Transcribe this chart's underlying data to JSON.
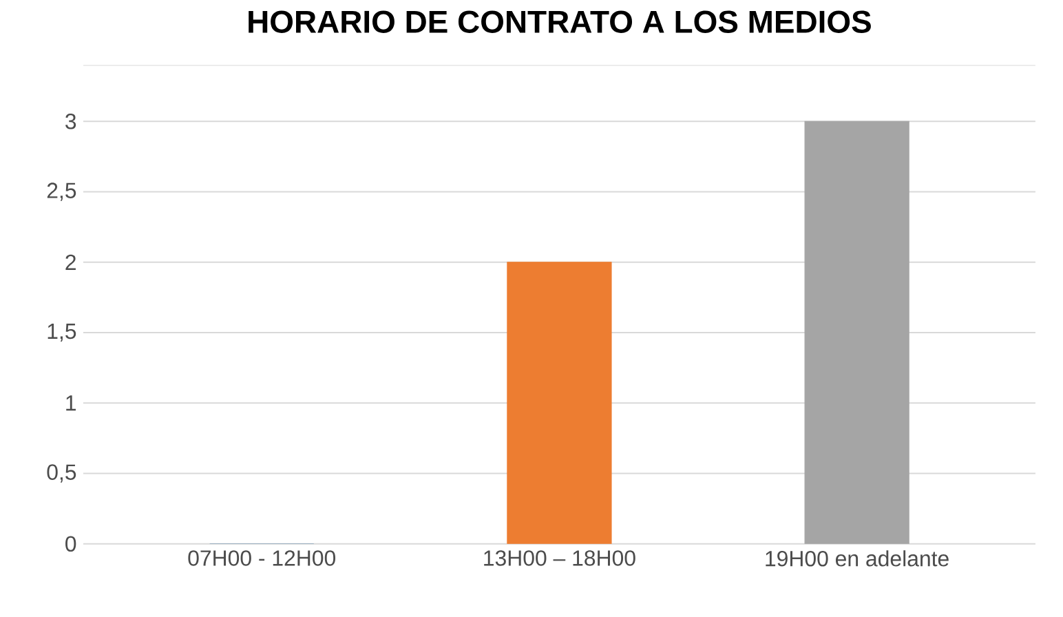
{
  "chart_data": {
    "type": "bar",
    "title": "HORARIO DE CONTRATO A LOS MEDIOS",
    "categories": [
      "07H00 - 12H00",
      "13H00 – 18H00",
      "19H00 en adelante"
    ],
    "values": [
      0,
      2,
      3
    ],
    "colors": [
      "#41729f",
      "#ed7d31",
      "#a5a5a5"
    ],
    "ylim": [
      0,
      3.4
    ],
    "yticks": [
      0,
      {
        "value": 0.5,
        "label": "0,5"
      },
      1,
      {
        "value": 1.5,
        "label": "1,5"
      },
      2,
      {
        "value": 2.5,
        "label": "2,5"
      },
      3
    ],
    "grid": "y"
  }
}
